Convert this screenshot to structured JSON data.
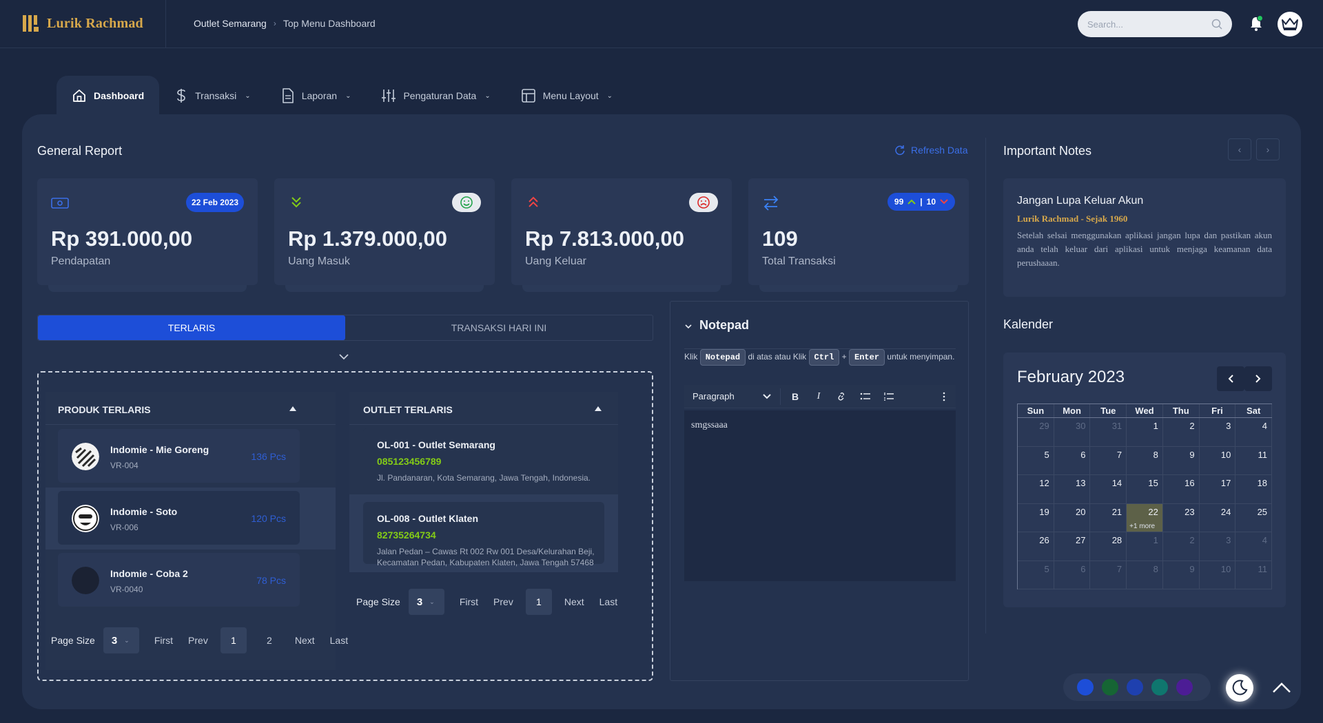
{
  "brand": {
    "name": "Lurik Rachmad",
    "accent": "#d7a84b"
  },
  "breadcrumb": [
    "Outlet Semarang",
    "Top Menu Dashboard"
  ],
  "search": {
    "placeholder": "Search..."
  },
  "nav": [
    {
      "label": "Dashboard",
      "icon": "home-icon",
      "active": true
    },
    {
      "label": "Transaksi",
      "icon": "dollar-icon"
    },
    {
      "label": "Laporan",
      "icon": "document-icon"
    },
    {
      "label": "Pengaturan Data",
      "icon": "sliders-icon"
    },
    {
      "label": "Menu Layout",
      "icon": "layout-icon"
    }
  ],
  "general_report": {
    "title": "General Report",
    "refresh_label": "Refresh Data",
    "cards": [
      {
        "value": "Rp 391.000,00",
        "label": "Pendapatan",
        "badge": "22 Feb 2023"
      },
      {
        "value": "Rp 1.379.000,00",
        "label": "Uang Masuk",
        "badge_icon": "smile-icon"
      },
      {
        "value": "Rp 7.813.000,00",
        "label": "Uang Keluar",
        "badge_icon": "frown-icon"
      },
      {
        "value": "109",
        "label": "Total Transaksi",
        "badge_up": "99",
        "badge_down": "10"
      }
    ]
  },
  "tabs": {
    "best": "TERLARIS",
    "today": "TRANSAKSI HARI INI"
  },
  "produk": {
    "title": "PRODUK TERLARIS",
    "items": [
      {
        "name": "Indomie - Mie Goreng",
        "code": "VR-004",
        "qty": "136 Pcs"
      },
      {
        "name": "Indomie - Soto",
        "code": "VR-006",
        "qty": "120 Pcs"
      },
      {
        "name": "Indomie - Coba 2",
        "code": "VR-0040",
        "qty": "78 Pcs"
      }
    ],
    "pager": {
      "page_size_label": "Page Size",
      "page_size": "3",
      "first": "First",
      "prev": "Prev",
      "pages": [
        "1",
        "2"
      ],
      "next": "Next",
      "last": "Last"
    }
  },
  "outlet": {
    "title": "OUTLET TERLARIS",
    "items": [
      {
        "name": "OL-001 - Outlet Semarang",
        "phone": "085123456789",
        "address": "Jl. Pandanaran, Kota Semarang, Jawa Tengah, Indonesia."
      },
      {
        "name": "OL-008 - Outlet Klaten",
        "phone": "82735264734",
        "address": "Jalan Pedan – Cawas Rt 002 Rw 001 Desa/Kelurahan Beji, Kecamatan Pedan, Kabupaten Klaten, Jawa Tengah 57468"
      }
    ],
    "pager": {
      "page_size_label": "Page Size",
      "page_size": "3",
      "first": "First",
      "prev": "Prev",
      "page": "1",
      "next": "Next",
      "last": "Last"
    }
  },
  "notepad": {
    "title": "Notepad",
    "hint_pre": "Klik",
    "hint_key1": "Notepad",
    "hint_mid": "di atas atau Klik",
    "hint_key2": "Ctrl",
    "hint_plus": "+",
    "hint_key3": "Enter",
    "hint_post": "untuk menyimpan.",
    "paragraph": "Paragraph",
    "content": "smgssaaa"
  },
  "notes": {
    "title": "Important Notes",
    "card_title": "Jangan Lupa Keluar Akun",
    "card_sub": "Lurik Rachmad - Sejak 1960",
    "card_body": "Setelah selsai menggunakan aplikasi jangan lupa dan pastikan akun anda telah keluar dari aplikasi untuk menjaga keamanan data perushaaan."
  },
  "calendar": {
    "section_title": "Kalender",
    "month": "February 2023",
    "weekdays": [
      "Sun",
      "Mon",
      "Tue",
      "Wed",
      "Thu",
      "Fri",
      "Sat"
    ],
    "weeks": [
      [
        "29",
        "30",
        "31",
        "1",
        "2",
        "3",
        "4"
      ],
      [
        "5",
        "6",
        "7",
        "8",
        "9",
        "10",
        "11"
      ],
      [
        "12",
        "13",
        "14",
        "15",
        "16",
        "17",
        "18"
      ],
      [
        "19",
        "20",
        "21",
        "22",
        "23",
        "24",
        "25"
      ],
      [
        "26",
        "27",
        "28",
        "1",
        "2",
        "3",
        "4"
      ],
      [
        "5",
        "6",
        "7",
        "8",
        "9",
        "10",
        "11"
      ]
    ],
    "today": "22",
    "today_more": "+1 more"
  },
  "theme_colors": [
    "#1d4ed8",
    "#166534",
    "#1e40af",
    "#0f766e",
    "#4c1d95"
  ]
}
